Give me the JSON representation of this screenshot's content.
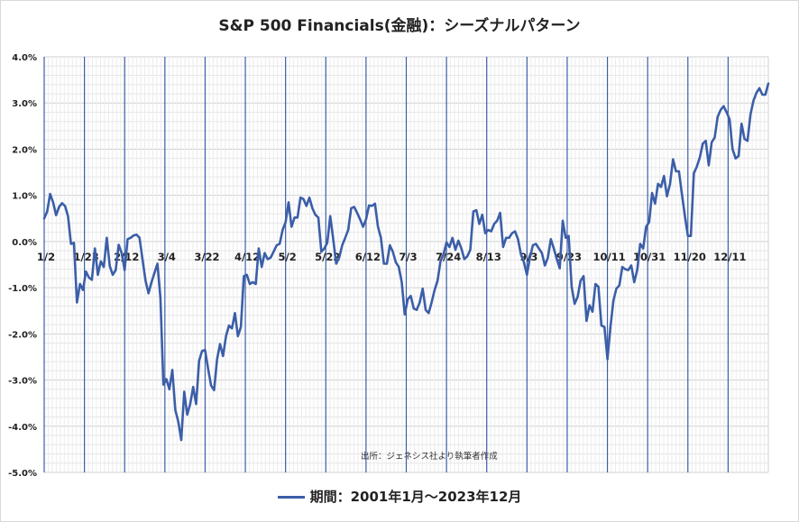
{
  "chart_data": {
    "type": "line",
    "title": "S&P 500 Financials(金融)：シーズナルパターン",
    "xlabel": "",
    "ylabel": "",
    "ylim": [
      -0.05,
      0.04
    ],
    "y_ticks": [
      "4.0%",
      "3.0%",
      "2.0%",
      "1.0%",
      "0.0%",
      "-1.0%",
      "-2.0%",
      "-3.0%",
      "-4.0%",
      "-5.0%"
    ],
    "x_tick_labels": [
      "1/2",
      "1/23",
      "2/12",
      "3/4",
      "3/22",
      "4/12",
      "5/2",
      "5/22",
      "6/12",
      "7/3",
      "7/24",
      "8/13",
      "9/3",
      "9/23",
      "10/11",
      "10/31",
      "11/20",
      "12/11"
    ],
    "grid": true,
    "legend_position": "bottom",
    "annotation": "出所：ジェネシス社より執筆者作成",
    "series": [
      {
        "name": "期間：2001年1月～2023年12月",
        "color": "#3b5ea8",
        "values": [
          0.005,
          0.0065,
          0.0103,
          0.0085,
          0.0057,
          0.0075,
          0.0083,
          0.0077,
          0.0055,
          -0.0005,
          -0.0003,
          -0.0132,
          -0.0092,
          -0.0105,
          -0.0065,
          -0.0078,
          -0.0083,
          -0.0015,
          -0.0072,
          -0.0043,
          -0.0055,
          0.0008,
          -0.0053,
          -0.0072,
          -0.0062,
          -0.0007,
          -0.0025,
          -0.0062,
          0.0005,
          0.0008,
          0.0013,
          0.0015,
          0.0008,
          -0.0038,
          -0.0085,
          -0.0112,
          -0.0088,
          -0.0068,
          -0.0048,
          -0.0122,
          -0.031,
          -0.0298,
          -0.032,
          -0.0278,
          -0.0365,
          -0.039,
          -0.043,
          -0.0325,
          -0.0375,
          -0.0352,
          -0.0315,
          -0.0352,
          -0.0258,
          -0.0237,
          -0.0235,
          -0.0275,
          -0.0312,
          -0.0322,
          -0.0255,
          -0.0222,
          -0.0248,
          -0.0205,
          -0.0182,
          -0.0188,
          -0.0155,
          -0.0205,
          -0.0185,
          -0.0075,
          -0.0072,
          -0.0092,
          -0.0088,
          -0.0092,
          -0.0015,
          -0.0055,
          -0.0025,
          -0.0038,
          -0.0035,
          -0.0022,
          -0.0008,
          -0.0005,
          0.0025,
          0.0042,
          0.0085,
          0.0032,
          0.0052,
          0.0052,
          0.0095,
          0.0092,
          0.0077,
          0.0095,
          0.0072,
          0.0058,
          0.0052,
          -0.0022,
          -0.0015,
          -0.0003,
          0.0055,
          0.0005,
          -0.0048,
          -0.0035,
          -0.0008,
          0.0008,
          0.0025,
          0.0072,
          0.0075,
          0.0062,
          0.0048,
          0.0032,
          0.0048,
          0.0078,
          0.0077,
          0.0082,
          0.0032,
          0.0008,
          -0.0048,
          -0.0048,
          -0.0008,
          -0.0022,
          -0.0045,
          -0.0055,
          -0.0088,
          -0.0158,
          -0.0125,
          -0.0118,
          -0.0145,
          -0.0148,
          -0.0132,
          -0.0102,
          -0.0148,
          -0.0155,
          -0.0132,
          -0.0105,
          -0.0085,
          -0.0042,
          -0.0028,
          -0.0002,
          -0.0012,
          0.0008,
          -0.0018,
          0.0002,
          -0.0015,
          -0.0038,
          -0.0032,
          -0.0018,
          0.0065,
          0.0068,
          0.0038,
          0.0058,
          0.0018,
          0.0025,
          0.0022,
          0.0038,
          0.0045,
          0.0062,
          -0.0012,
          0.0008,
          0.0008,
          0.0018,
          0.0022,
          0.0005,
          -0.0028,
          -0.0045,
          -0.0072,
          -0.0035,
          -0.0008,
          -0.0005,
          -0.0015,
          -0.0025,
          -0.0052,
          -0.0035,
          0.0005,
          -0.0015,
          -0.0038,
          -0.0058,
          0.0045,
          0.0008,
          0.0012,
          -0.0098,
          -0.0135,
          -0.012,
          -0.0085,
          -0.0075,
          -0.0172,
          -0.0138,
          -0.0152,
          -0.0092,
          -0.0098,
          -0.0182,
          -0.0185,
          -0.0255,
          -0.0185,
          -0.0128,
          -0.0102,
          -0.0095,
          -0.0055,
          -0.006,
          -0.0062,
          -0.0052,
          -0.0088,
          -0.0062,
          -0.0005,
          -0.0015,
          0.0032,
          0.0042,
          0.0105,
          0.0082,
          0.0125,
          0.0118,
          0.0142,
          0.0098,
          0.0125,
          0.0178,
          0.0152,
          0.0152,
          0.0102,
          0.0055,
          0.0012,
          0.0012,
          0.0148,
          0.0162,
          0.0182,
          0.0212,
          0.0218,
          0.0165,
          0.0215,
          0.0225,
          0.027,
          0.0285,
          0.0293,
          0.028,
          0.0265,
          0.02,
          0.018,
          0.0185,
          0.0255,
          0.0222,
          0.0218,
          0.0275,
          0.0305,
          0.0322,
          0.0332,
          0.0318,
          0.0318,
          0.0342
        ]
      }
    ]
  }
}
